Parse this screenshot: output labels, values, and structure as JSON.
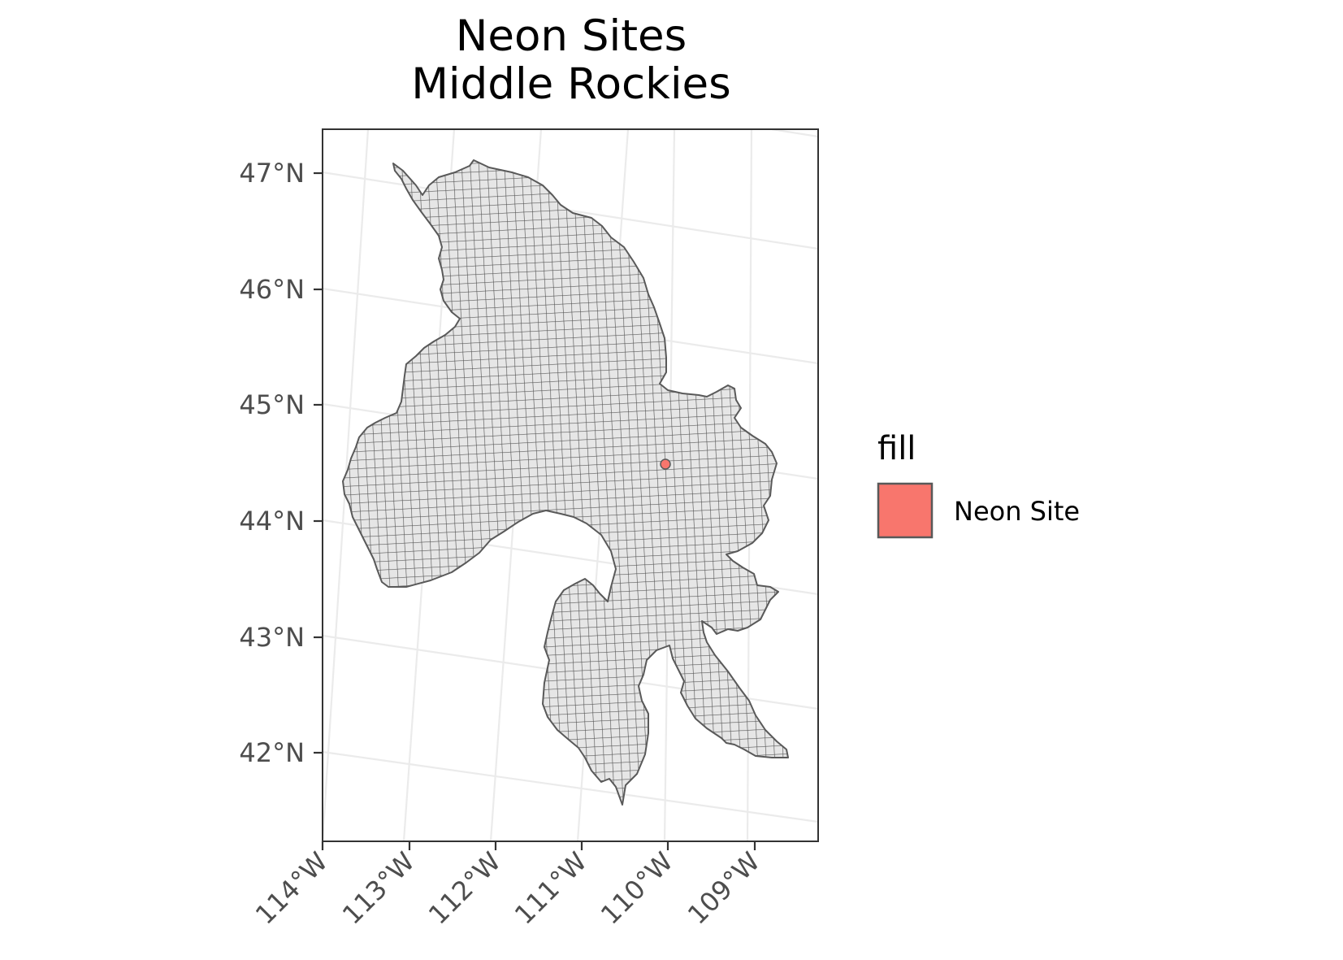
{
  "title": {
    "line1": "Neon Sites",
    "line2": "Middle Rockies"
  },
  "colors": {
    "region_fill": "#e6e6e6",
    "region_stroke": "#595959",
    "site_fill": "#f8766d",
    "graticule": "#ebebeb",
    "panel_border": "#333333"
  },
  "chart_data": {
    "type": "map",
    "projection": "conic",
    "x_axis": {
      "ticks": [
        {
          "value": -114,
          "label": "114°W"
        },
        {
          "value": -113,
          "label": "113°W"
        },
        {
          "value": -112,
          "label": "112°W"
        },
        {
          "value": -111,
          "label": "111°W"
        },
        {
          "value": -110,
          "label": "110°W"
        },
        {
          "value": -109,
          "label": "109°W"
        }
      ]
    },
    "y_axis": {
      "ticks": [
        {
          "value": 47,
          "label": "47°N"
        },
        {
          "value": 46,
          "label": "46°N"
        },
        {
          "value": 45,
          "label": "45°N"
        },
        {
          "value": 44,
          "label": "44°N"
        },
        {
          "value": 43,
          "label": "43°N"
        },
        {
          "value": 42,
          "label": "42°N"
        }
      ]
    },
    "regions": [
      {
        "label": "",
        "fill": "#e6e6e6",
        "gridded": true
      }
    ],
    "points": [
      {
        "lon": -110.0,
        "lat": 44.5,
        "category": "Neon Site"
      }
    ],
    "legend": {
      "title": "fill",
      "position": "right",
      "entries": [
        {
          "label": "Neon Site",
          "color": "#f8766d"
        }
      ]
    },
    "grid": true
  }
}
